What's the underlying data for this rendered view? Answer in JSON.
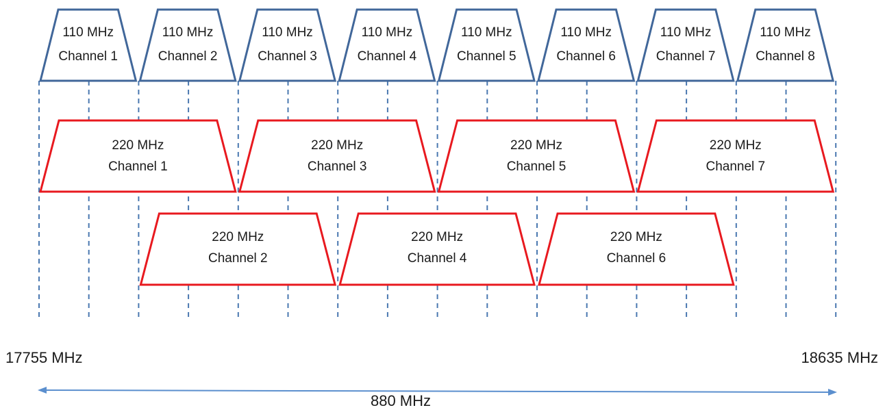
{
  "colors": {
    "narrow_channel": "#41679a",
    "wide_channel": "#e8191f",
    "gridline": "#4a78b0",
    "span_arrow": "#5b8fce"
  },
  "narrow_channels": [
    {
      "bandwidth": "110 MHz",
      "name": "Channel 1"
    },
    {
      "bandwidth": "110 MHz",
      "name": "Channel 2"
    },
    {
      "bandwidth": "110 MHz",
      "name": "Channel 3"
    },
    {
      "bandwidth": "110 MHz",
      "name": "Channel 4"
    },
    {
      "bandwidth": "110 MHz",
      "name": "Channel 5"
    },
    {
      "bandwidth": "110 MHz",
      "name": "Channel 6"
    },
    {
      "bandwidth": "110 MHz",
      "name": "Channel 7"
    },
    {
      "bandwidth": "110 MHz",
      "name": "Channel 8"
    }
  ],
  "wide_channels_row1": [
    {
      "bandwidth": "220 MHz",
      "name": "Channel 1"
    },
    {
      "bandwidth": "220 MHz",
      "name": "Channel 3"
    },
    {
      "bandwidth": "220 MHz",
      "name": "Channel 5"
    },
    {
      "bandwidth": "220 MHz",
      "name": "Channel 7"
    }
  ],
  "wide_channels_row2": [
    {
      "bandwidth": "220 MHz",
      "name": "Channel 2"
    },
    {
      "bandwidth": "220 MHz",
      "name": "Channel 4"
    },
    {
      "bandwidth": "220 MHz",
      "name": "Channel 6"
    }
  ],
  "band": {
    "start_label": "17755 MHz",
    "end_label": "18635 MHz",
    "span_label": "880 MHz"
  }
}
